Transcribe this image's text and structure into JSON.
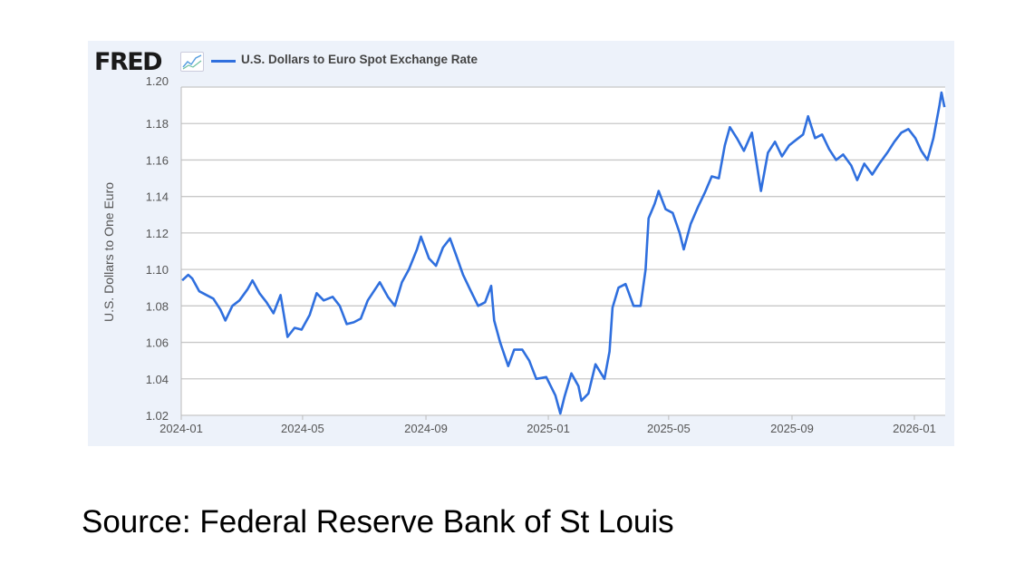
{
  "header": {
    "logo": "FRED",
    "logo_icon": "line-chart-icon"
  },
  "source": "Source: Federal Reserve Bank of St Louis",
  "chart_data": {
    "type": "line",
    "title": "",
    "ylabel": "U.S. Dollars to One Euro",
    "xlabel": "",
    "ylim": [
      1.02,
      1.2
    ],
    "xlim": [
      "2024-01-01",
      "2026-02-01"
    ],
    "yticks": [
      "1.02",
      "1.04",
      "1.06",
      "1.08",
      "1.10",
      "1.12",
      "1.14",
      "1.16",
      "1.18",
      "1.20"
    ],
    "xticks": [
      "2024-01",
      "2024-05",
      "2024-09",
      "2025-01",
      "2025-05",
      "2025-09",
      "2026-01"
    ],
    "grid": true,
    "legend_placement": "top-left",
    "color": "#2f6fde",
    "series": [
      {
        "name": "U.S. Dollars to Euro Spot Exchange Rate",
        "points": [
          [
            "2024-01-02",
            1.094
          ],
          [
            "2024-01-08",
            1.097
          ],
          [
            "2024-01-12",
            1.095
          ],
          [
            "2024-01-19",
            1.088
          ],
          [
            "2024-01-26",
            1.086
          ],
          [
            "2024-02-02",
            1.084
          ],
          [
            "2024-02-09",
            1.078
          ],
          [
            "2024-02-14",
            1.072
          ],
          [
            "2024-02-21",
            1.08
          ],
          [
            "2024-02-28",
            1.083
          ],
          [
            "2024-03-07",
            1.089
          ],
          [
            "2024-03-12",
            1.094
          ],
          [
            "2024-03-19",
            1.087
          ],
          [
            "2024-03-26",
            1.082
          ],
          [
            "2024-04-02",
            1.076
          ],
          [
            "2024-04-09",
            1.086
          ],
          [
            "2024-04-16",
            1.063
          ],
          [
            "2024-04-23",
            1.068
          ],
          [
            "2024-04-30",
            1.067
          ],
          [
            "2024-05-08",
            1.075
          ],
          [
            "2024-05-15",
            1.087
          ],
          [
            "2024-05-22",
            1.083
          ],
          [
            "2024-05-31",
            1.085
          ],
          [
            "2024-06-07",
            1.08
          ],
          [
            "2024-06-14",
            1.07
          ],
          [
            "2024-06-21",
            1.071
          ],
          [
            "2024-06-28",
            1.073
          ],
          [
            "2024-07-05",
            1.083
          ],
          [
            "2024-07-17",
            1.093
          ],
          [
            "2024-07-25",
            1.085
          ],
          [
            "2024-08-01",
            1.08
          ],
          [
            "2024-08-08",
            1.093
          ],
          [
            "2024-08-15",
            1.1
          ],
          [
            "2024-08-23",
            1.111
          ],
          [
            "2024-08-27",
            1.118
          ],
          [
            "2024-09-04",
            1.106
          ],
          [
            "2024-09-11",
            1.102
          ],
          [
            "2024-09-18",
            1.112
          ],
          [
            "2024-09-25",
            1.117
          ],
          [
            "2024-10-01",
            1.108
          ],
          [
            "2024-10-08",
            1.097
          ],
          [
            "2024-10-15",
            1.089
          ],
          [
            "2024-10-23",
            1.08
          ],
          [
            "2024-10-30",
            1.082
          ],
          [
            "2024-11-05",
            1.091
          ],
          [
            "2024-11-08",
            1.072
          ],
          [
            "2024-11-14",
            1.06
          ],
          [
            "2024-11-22",
            1.047
          ],
          [
            "2024-11-28",
            1.056
          ],
          [
            "2024-12-06",
            1.056
          ],
          [
            "2024-12-13",
            1.05
          ],
          [
            "2024-12-20",
            1.04
          ],
          [
            "2024-12-30",
            1.041
          ],
          [
            "2025-01-08",
            1.031
          ],
          [
            "2025-01-13",
            1.021
          ],
          [
            "2025-01-17",
            1.03
          ],
          [
            "2025-01-24",
            1.043
          ],
          [
            "2025-01-31",
            1.036
          ],
          [
            "2025-02-03",
            1.028
          ],
          [
            "2025-02-10",
            1.032
          ],
          [
            "2025-02-17",
            1.048
          ],
          [
            "2025-02-26",
            1.04
          ],
          [
            "2025-03-03",
            1.055
          ],
          [
            "2025-03-06",
            1.079
          ],
          [
            "2025-03-12",
            1.09
          ],
          [
            "2025-03-19",
            1.092
          ],
          [
            "2025-03-27",
            1.08
          ],
          [
            "2025-04-03",
            1.08
          ],
          [
            "2025-04-08",
            1.1
          ],
          [
            "2025-04-11",
            1.128
          ],
          [
            "2025-04-17",
            1.136
          ],
          [
            "2025-04-21",
            1.143
          ],
          [
            "2025-04-28",
            1.133
          ],
          [
            "2025-05-05",
            1.131
          ],
          [
            "2025-05-12",
            1.12
          ],
          [
            "2025-05-16",
            1.111
          ],
          [
            "2025-05-23",
            1.125
          ],
          [
            "2025-05-30",
            1.134
          ],
          [
            "2025-06-06",
            1.142
          ],
          [
            "2025-06-13",
            1.151
          ],
          [
            "2025-06-20",
            1.15
          ],
          [
            "2025-06-26",
            1.168
          ],
          [
            "2025-07-01",
            1.178
          ],
          [
            "2025-07-08",
            1.172
          ],
          [
            "2025-07-15",
            1.165
          ],
          [
            "2025-07-23",
            1.175
          ],
          [
            "2025-08-01",
            1.143
          ],
          [
            "2025-08-08",
            1.164
          ],
          [
            "2025-08-15",
            1.17
          ],
          [
            "2025-08-22",
            1.162
          ],
          [
            "2025-08-29",
            1.168
          ],
          [
            "2025-09-05",
            1.171
          ],
          [
            "2025-09-12",
            1.174
          ],
          [
            "2025-09-17",
            1.184
          ],
          [
            "2025-09-24",
            1.172
          ],
          [
            "2025-10-01",
            1.174
          ],
          [
            "2025-10-08",
            1.166
          ],
          [
            "2025-10-15",
            1.16
          ],
          [
            "2025-10-22",
            1.163
          ],
          [
            "2025-10-30",
            1.157
          ],
          [
            "2025-11-05",
            1.149
          ],
          [
            "2025-11-12",
            1.158
          ],
          [
            "2025-11-20",
            1.152
          ],
          [
            "2025-11-27",
            1.158
          ],
          [
            "2025-12-05",
            1.164
          ],
          [
            "2025-12-12",
            1.17
          ],
          [
            "2025-12-19",
            1.175
          ],
          [
            "2025-12-26",
            1.177
          ],
          [
            "2026-01-02",
            1.172
          ],
          [
            "2026-01-08",
            1.165
          ],
          [
            "2026-01-14",
            1.16
          ],
          [
            "2026-01-20",
            1.172
          ],
          [
            "2026-01-26",
            1.19
          ],
          [
            "2026-01-28",
            1.197
          ],
          [
            "2026-01-31",
            1.189
          ]
        ]
      }
    ]
  }
}
